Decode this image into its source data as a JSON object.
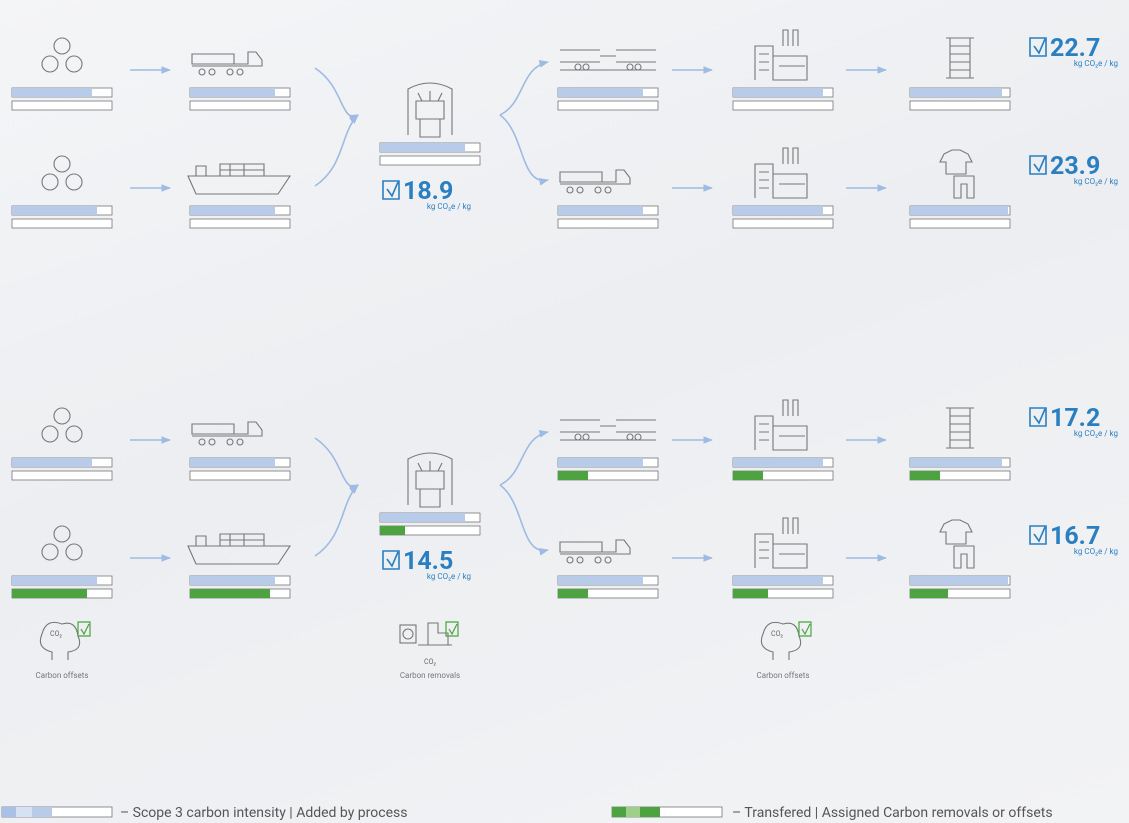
{
  "scenarios": [
    {
      "results": [
        {
          "value": 18.9,
          "unit": "kg CO₂e / kg"
        },
        {
          "value": 22.7,
          "unit": "kg CO₂e / kg"
        },
        {
          "value": 23.9,
          "unit": "kg CO₂e / kg"
        }
      ]
    },
    {
      "results": [
        {
          "value": 14.5,
          "unit": "kg CO₂e / kg"
        },
        {
          "value": 17.2,
          "unit": "kg CO₂e / kg"
        },
        {
          "value": 16.7,
          "unit": "kg CO₂e / kg"
        }
      ],
      "captions": [
        "Carbon offsets",
        "Carbon removals",
        "Carbon offsets"
      ],
      "icon_text": "CO₂"
    }
  ],
  "legend": [
    "– Scope 3 carbon intensity | Added by process",
    "– Transfered | Assigned Carbon removals or offsets"
  ]
}
